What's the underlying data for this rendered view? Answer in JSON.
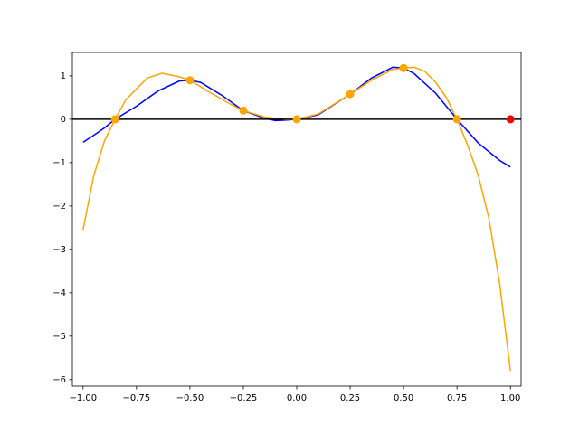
{
  "chart_data": {
    "type": "line",
    "xlim": [
      -1.05,
      1.05
    ],
    "ylim": [
      -6.15,
      1.54
    ],
    "xticks": [
      {
        "value": -1,
        "label": "−1.00"
      },
      {
        "value": -0.75,
        "label": "−0.75"
      },
      {
        "value": -0.5,
        "label": "−0.50"
      },
      {
        "value": -0.25,
        "label": "−0.25"
      },
      {
        "value": 0,
        "label": "0.00"
      },
      {
        "value": 0.25,
        "label": "0.25"
      },
      {
        "value": 0.5,
        "label": "0.50"
      },
      {
        "value": 0.75,
        "label": "0.75"
      },
      {
        "value": 1,
        "label": "1.00"
      }
    ],
    "yticks": [
      {
        "value": -6,
        "label": "−6"
      },
      {
        "value": -5,
        "label": "−5"
      },
      {
        "value": -4,
        "label": "−4"
      },
      {
        "value": -3,
        "label": "−3"
      },
      {
        "value": -2,
        "label": "−2"
      },
      {
        "value": -1,
        "label": "−1"
      },
      0,
      1
    ],
    "reference_line": {
      "y": 0,
      "color": "#000000"
    },
    "series": [
      {
        "kind": "line",
        "color": "#0000ff",
        "x": [
          -1,
          -0.95,
          -0.9,
          -0.85,
          -0.75,
          -0.65,
          -0.55,
          -0.5,
          -0.45,
          -0.35,
          -0.25,
          -0.15,
          -0.1,
          -0.05,
          0,
          0.1,
          0.25,
          0.35,
          0.45,
          0.5,
          0.55,
          0.65,
          0.75,
          0.85,
          0.95,
          1
        ],
        "values": [
          -0.53,
          -0.37,
          -0.2,
          0,
          0.3,
          0.65,
          0.88,
          0.9,
          0.85,
          0.55,
          0.2,
          0.02,
          -0.03,
          -0.02,
          0,
          0.1,
          0.58,
          0.95,
          1.2,
          1.18,
          1.05,
          0.6,
          0,
          -0.55,
          -0.95,
          -1.1
        ]
      },
      {
        "kind": "line",
        "color": "#ffa500",
        "x": [
          -1,
          -0.95,
          -0.9,
          -0.85,
          -0.8,
          -0.7,
          -0.63,
          -0.55,
          -0.5,
          -0.4,
          -0.3,
          -0.25,
          -0.15,
          -0.05,
          0,
          0.1,
          0.25,
          0.35,
          0.45,
          0.5,
          0.55,
          0.6,
          0.65,
          0.7,
          0.75,
          0.8,
          0.85,
          0.9,
          0.95,
          1
        ],
        "values": [
          -2.55,
          -1.3,
          -0.5,
          0,
          0.45,
          0.95,
          1.06,
          0.98,
          0.9,
          0.6,
          0.32,
          0.2,
          0.05,
          -0.01,
          0,
          0.12,
          0.58,
          0.9,
          1.15,
          1.18,
          1.2,
          1.1,
          0.85,
          0.5,
          0,
          -0.6,
          -1.3,
          -2.3,
          -3.8,
          -5.8
        ]
      },
      {
        "kind": "points",
        "color": "#ffa500",
        "x": [
          -0.85,
          -0.5,
          -0.25,
          0,
          0.25,
          0.5,
          0.75
        ],
        "values": [
          0,
          0.9,
          0.2,
          0,
          0.58,
          1.18,
          0
        ]
      },
      {
        "kind": "points",
        "color": "#ff0000",
        "x": [
          1
        ],
        "values": [
          0
        ]
      }
    ]
  }
}
